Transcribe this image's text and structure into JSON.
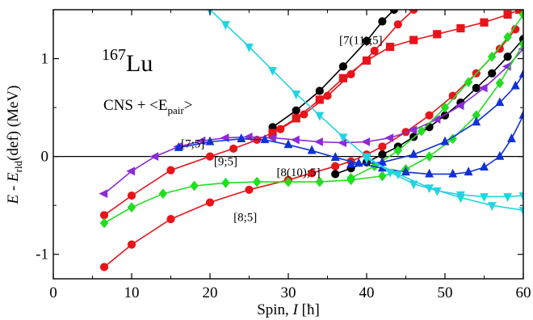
{
  "chart_data": {
    "type": "line",
    "nucleus": {
      "mass": "167",
      "element": "Lu"
    },
    "model": {
      "prefix": "CNS + <E",
      "sub": "pair",
      "suffix": ">"
    },
    "xlabel": {
      "prefix": "Spin, ",
      "italic": "I",
      "unit": " [ħ]"
    },
    "ylabel": {
      "e": "E",
      "mid": " - E",
      "sub": "rld",
      "tail": "(def) (MeV)"
    },
    "xlim": [
      0,
      60
    ],
    "ylim": [
      -1.25,
      1.5
    ],
    "xticks": [
      0,
      10,
      20,
      30,
      40,
      50,
      60
    ],
    "yticks": [
      {
        "v": -1,
        "label": "-1"
      },
      {
        "v": 0,
        "label": "0"
      },
      {
        "v": 1,
        "label": "1"
      }
    ],
    "zero_line": true,
    "series": [
      {
        "id": "s85",
        "color": "#e8141b",
        "marker": "circle",
        "points": [
          [
            6.5,
            -1.13
          ],
          [
            10,
            -0.9
          ],
          [
            15,
            -0.64
          ],
          [
            20,
            -0.47
          ],
          [
            25,
            -0.34
          ],
          [
            30,
            -0.24
          ],
          [
            33,
            -0.17
          ],
          [
            36,
            -0.1
          ],
          [
            38,
            -0.05
          ],
          [
            40,
            0.02
          ],
          [
            42,
            0.1
          ],
          [
            45,
            0.25
          ],
          [
            48,
            0.42
          ],
          [
            51,
            0.62
          ],
          [
            54,
            0.85
          ],
          [
            57,
            1.1
          ],
          [
            59,
            1.3
          ]
        ]
      },
      {
        "id": "s95",
        "color": "#e8141b",
        "marker": "circle",
        "points": [
          [
            6.5,
            -0.6
          ],
          [
            10,
            -0.4
          ],
          [
            15,
            -0.14
          ],
          [
            20,
            0.0
          ],
          [
            23,
            0.08
          ],
          [
            26,
            0.17
          ],
          [
            29,
            0.28
          ],
          [
            32,
            0.43
          ],
          [
            35,
            0.62
          ],
          [
            38,
            0.84
          ],
          [
            41,
            1.08
          ],
          [
            44,
            1.35
          ],
          [
            46,
            1.5
          ]
        ]
      },
      {
        "id": "sBlack",
        "color": "#000000",
        "marker": "circle",
        "points": [
          [
            28,
            0.3
          ],
          [
            31,
            0.47
          ],
          [
            34,
            0.67
          ],
          [
            37,
            0.92
          ],
          [
            40,
            1.18
          ],
          [
            42,
            1.38
          ],
          [
            43.5,
            1.5
          ]
        ]
      },
      {
        "id": "sRedSq",
        "color": "#e8141b",
        "marker": "square",
        "points": [
          [
            28,
            0.24
          ],
          [
            31,
            0.39
          ],
          [
            34,
            0.58
          ],
          [
            37,
            0.8
          ],
          [
            40,
            0.98
          ],
          [
            43,
            1.12
          ],
          [
            46,
            1.19
          ],
          [
            49,
            1.25
          ],
          [
            52,
            1.31
          ],
          [
            55,
            1.37
          ],
          [
            58,
            1.45
          ],
          [
            59.5,
            1.5
          ]
        ]
      },
      {
        "id": "sBlackMid",
        "color": "#000000",
        "marker": "circle",
        "points": [
          [
            36,
            -0.18
          ],
          [
            38,
            -0.12
          ],
          [
            40,
            -0.06
          ],
          [
            42,
            0.02
          ],
          [
            44,
            0.1
          ],
          [
            46,
            0.2
          ],
          [
            48,
            0.3
          ],
          [
            50,
            0.42
          ],
          [
            52,
            0.55
          ],
          [
            54,
            0.7
          ],
          [
            56,
            0.85
          ],
          [
            58,
            1.02
          ],
          [
            60,
            1.2
          ]
        ]
      },
      {
        "id": "s75",
        "color": "#8c2bd6",
        "marker": "triangle-left",
        "points": [
          [
            6.5,
            -0.38
          ],
          [
            10,
            -0.15
          ],
          [
            13,
            0.0
          ],
          [
            16,
            0.1
          ],
          [
            19,
            0.16
          ],
          [
            22,
            0.19
          ],
          [
            25,
            0.2
          ],
          [
            28,
            0.19
          ],
          [
            31,
            0.17
          ],
          [
            34,
            0.15
          ],
          [
            37,
            0.14
          ],
          [
            40,
            0.15
          ],
          [
            43,
            0.19
          ],
          [
            46,
            0.27
          ],
          [
            49,
            0.38
          ],
          [
            52,
            0.52
          ],
          [
            55,
            0.7
          ],
          [
            58,
            0.92
          ],
          [
            60,
            1.1
          ]
        ]
      },
      {
        "id": "s8105",
        "color": "#22dd22",
        "marker": "diamond",
        "points": [
          [
            6.5,
            -0.68
          ],
          [
            10,
            -0.52
          ],
          [
            14,
            -0.38
          ],
          [
            18,
            -0.3
          ],
          [
            22,
            -0.27
          ],
          [
            26,
            -0.26
          ],
          [
            30,
            -0.26
          ],
          [
            34,
            -0.26
          ],
          [
            38,
            -0.24
          ],
          [
            42,
            -0.2
          ],
          [
            45,
            -0.13
          ],
          [
            48,
            0.0
          ],
          [
            51,
            0.18
          ],
          [
            54,
            0.42
          ],
          [
            57,
            0.75
          ],
          [
            60,
            1.15
          ]
        ]
      },
      {
        "id": "sGreen2",
        "color": "#22dd22",
        "marker": "diamond",
        "points": [
          [
            38,
            -0.22
          ],
          [
            41,
            -0.1
          ],
          [
            44,
            0.06
          ],
          [
            47,
            0.26
          ],
          [
            50,
            0.5
          ],
          [
            53,
            0.76
          ],
          [
            56,
            1.02
          ],
          [
            58,
            1.22
          ],
          [
            60,
            1.45
          ]
        ]
      },
      {
        "id": "sBlue",
        "color": "#1030d8",
        "marker": "triangle-up",
        "points": [
          [
            16,
            0.09
          ],
          [
            20,
            0.15
          ],
          [
            24,
            0.18
          ],
          [
            27,
            0.17
          ],
          [
            30,
            0.12
          ],
          [
            33,
            0.06
          ],
          [
            36,
            -0.01
          ],
          [
            39,
            -0.07
          ],
          [
            42,
            -0.12
          ],
          [
            45,
            -0.16
          ],
          [
            48,
            -0.18
          ],
          [
            51,
            -0.18
          ],
          [
            53,
            -0.16
          ],
          [
            55,
            -0.11
          ],
          [
            57,
            0.0
          ],
          [
            58.5,
            0.18
          ],
          [
            60,
            0.42
          ]
        ]
      },
      {
        "id": "sBlue2",
        "color": "#1030d8",
        "marker": "triangle-up",
        "points": [
          [
            38,
            -0.08
          ],
          [
            42,
            -0.06
          ],
          [
            46,
            0.02
          ],
          [
            50,
            0.15
          ],
          [
            54,
            0.35
          ],
          [
            57,
            0.55
          ],
          [
            59,
            0.72
          ],
          [
            60,
            0.84
          ]
        ]
      },
      {
        "id": "s7115",
        "color": "#22d4e0",
        "marker": "triangle-down",
        "points": [
          [
            20,
            1.5
          ],
          [
            22,
            1.35
          ],
          [
            25,
            1.12
          ],
          [
            28,
            0.88
          ],
          [
            31,
            0.64
          ],
          [
            34,
            0.42
          ],
          [
            37,
            0.2
          ],
          [
            40,
            0.0
          ],
          [
            43,
            -0.16
          ],
          [
            46,
            -0.28
          ],
          [
            49,
            -0.35
          ],
          [
            52,
            -0.39
          ],
          [
            55,
            -0.41
          ],
          [
            58,
            -0.41
          ],
          [
            60,
            -0.4
          ]
        ]
      },
      {
        "id": "sCyan2",
        "color": "#22d4e0",
        "marker": "triangle-down",
        "points": [
          [
            40,
            -0.02
          ],
          [
            44,
            -0.18
          ],
          [
            48,
            -0.32
          ],
          [
            52,
            -0.42
          ],
          [
            56,
            -0.5
          ],
          [
            60,
            -0.55
          ]
        ]
      }
    ],
    "annotations": [
      {
        "text": "[7(11);5]",
        "x": 36.5,
        "y": 1.15
      },
      {
        "text": "[7;5]",
        "x": 16.3,
        "y": 0.09
      },
      {
        "text": "[9;5]",
        "x": 20.5,
        "y": -0.09
      },
      {
        "text": "[8(10);5]",
        "x": 28.5,
        "y": -0.2
      },
      {
        "text": "[8;5]",
        "x": 23,
        "y": -0.66
      }
    ]
  }
}
